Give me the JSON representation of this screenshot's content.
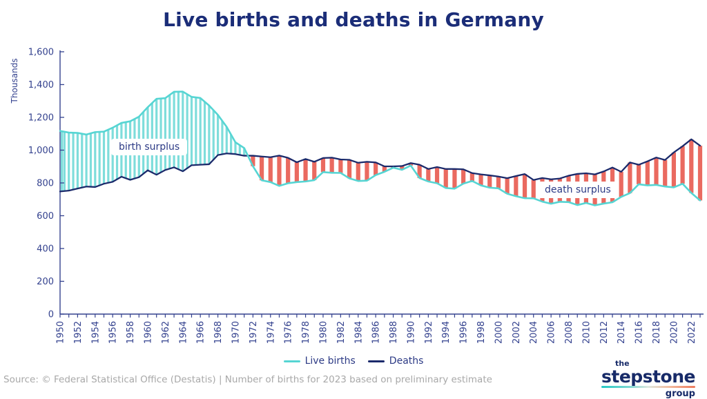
{
  "title": "Live births and deaths in Germany",
  "annotations": {
    "birth_surplus": "birth surplus",
    "death_surplus": "death surplus"
  },
  "legend": {
    "items": [
      {
        "label": "Live births",
        "color": "#56d5d3"
      },
      {
        "label": "Deaths",
        "color": "#1b2a6b"
      }
    ]
  },
  "footer": {
    "source": "Source: © Federal Statistical Office (Destatis) | Number of births for 2023 based on preliminary estimate"
  },
  "logo": {
    "line1": "the",
    "line2": "stepstone",
    "line3": "group"
  },
  "colors": {
    "births_line": "#56d5d3",
    "deaths_line": "#1b2a6b",
    "birth_surplus_hatch": "#7edddb",
    "death_surplus_hatch": "#ea6a60",
    "axis": "#33418e",
    "title": "#1b2d78",
    "footer_text": "#a8a8a8"
  },
  "chart_data": {
    "type": "line",
    "title": "Live births and deaths in Germany",
    "ylabel": "Thousands",
    "ylim": [
      0,
      1600
    ],
    "yticks": [
      0,
      200,
      400,
      600,
      800,
      1000,
      1200,
      1400,
      1600
    ],
    "grid": false,
    "legend_position": "bottom",
    "xtick_label_every": 2,
    "x": [
      1950,
      1951,
      1952,
      1953,
      1954,
      1955,
      1956,
      1957,
      1958,
      1959,
      1960,
      1961,
      1962,
      1963,
      1964,
      1965,
      1966,
      1967,
      1968,
      1969,
      1970,
      1971,
      1972,
      1973,
      1974,
      1975,
      1976,
      1977,
      1978,
      1979,
      1980,
      1981,
      1982,
      1983,
      1984,
      1985,
      1986,
      1987,
      1988,
      1989,
      1990,
      1991,
      1992,
      1993,
      1994,
      1995,
      1996,
      1997,
      1998,
      1999,
      2000,
      2001,
      2002,
      2003,
      2004,
      2005,
      2006,
      2007,
      2008,
      2009,
      2010,
      2011,
      2012,
      2013,
      2014,
      2015,
      2016,
      2017,
      2018,
      2019,
      2020,
      2021,
      2022,
      2023
    ],
    "series": [
      {
        "name": "Live births",
        "color": "#56d5d3",
        "hatch_color": "#7edddb",
        "values": [
          1117,
          1107,
          1105,
          1095,
          1110,
          1113,
          1137,
          1166,
          1176,
          1204,
          1262,
          1313,
          1317,
          1356,
          1357,
          1325,
          1318,
          1272,
          1215,
          1142,
          1048,
          1013,
          902,
          816,
          805,
          782,
          798,
          805,
          809,
          817,
          866,
          862,
          861,
          828,
          812,
          814,
          848,
          868,
          893,
          880,
          906,
          830,
          809,
          798,
          769,
          765,
          796,
          812,
          785,
          771,
          767,
          734,
          719,
          707,
          706,
          686,
          673,
          685,
          683,
          665,
          678,
          663,
          674,
          682,
          715,
          738,
          792,
          785,
          788,
          778,
          773,
          795,
          739,
          693
        ]
      },
      {
        "name": "Deaths",
        "color": "#1b2a6b",
        "hatch_color": "#ea6a60",
        "values": [
          748,
          753,
          766,
          778,
          775,
          795,
          807,
          838,
          819,
          835,
          877,
          850,
          879,
          895,
          871,
          908,
          911,
          914,
          970,
          980,
          976,
          966,
          966,
          961,
          957,
          967,
          953,
          926,
          946,
          929,
          952,
          954,
          943,
          941,
          923,
          929,
          925,
          901,
          901,
          903,
          921,
          911,
          885,
          897,
          885,
          885,
          883,
          860,
          852,
          846,
          839,
          829,
          842,
          854,
          818,
          830,
          822,
          827,
          844,
          855,
          859,
          852,
          870,
          894,
          868,
          925,
          911,
          932,
          955,
          940,
          986,
          1024,
          1066,
          1027
        ]
      }
    ],
    "surplus_labels": {
      "birth": "birth surplus",
      "death": "death surplus"
    }
  }
}
